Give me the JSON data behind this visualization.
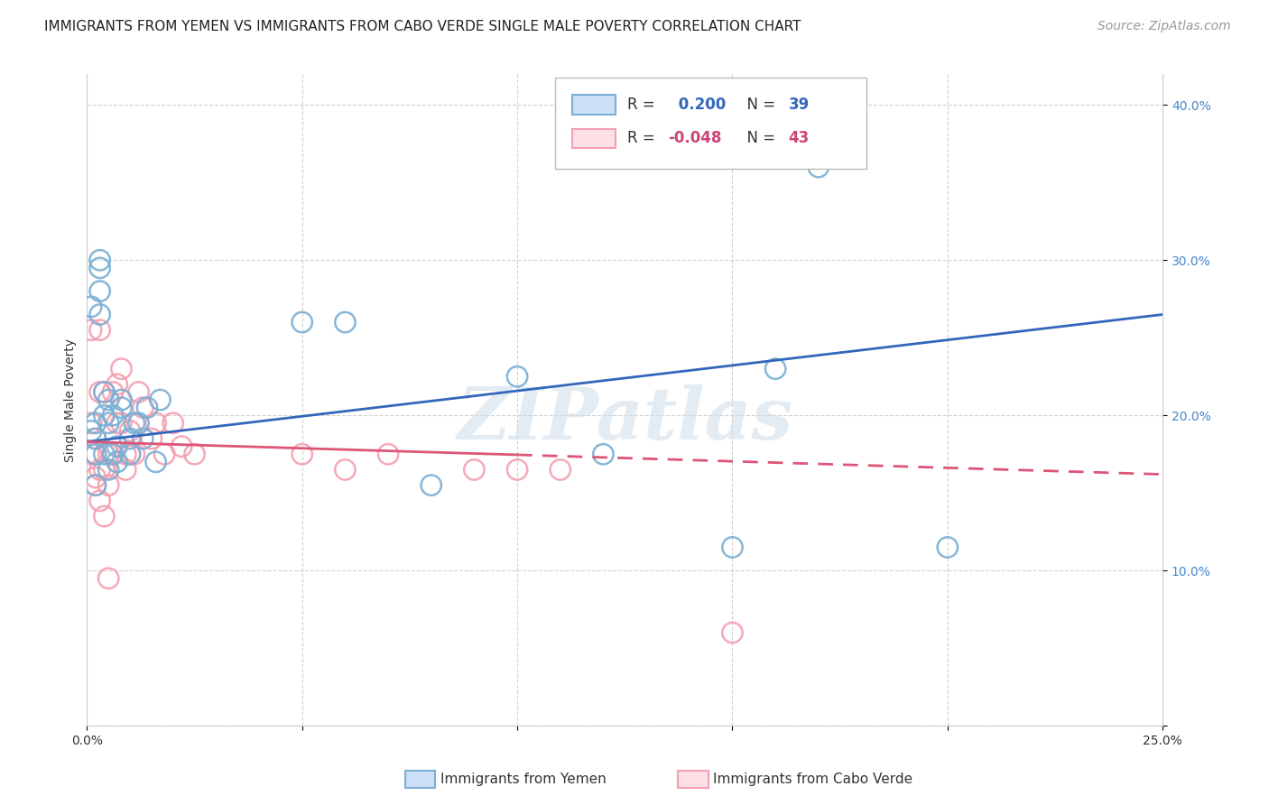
{
  "title": "IMMIGRANTS FROM YEMEN VS IMMIGRANTS FROM CABO VERDE SINGLE MALE POVERTY CORRELATION CHART",
  "source": "Source: ZipAtlas.com",
  "ylabel": "Single Male Poverty",
  "xlim": [
    0.0,
    0.25
  ],
  "ylim": [
    0.0,
    0.42
  ],
  "grid_color": "#cccccc",
  "background_color": "#ffffff",
  "yemen_color": "#7bafd4",
  "cabo_verde_color": "#f4a0b0",
  "yemen_line_color": "#3366bb",
  "cabo_line_color": "#dd5577",
  "yemen_R": 0.2,
  "yemen_N": 39,
  "cabo_verde_R": -0.048,
  "cabo_verde_N": 43,
  "watermark": "ZIPatlas",
  "yemen_scatter_x": [
    0.001,
    0.001,
    0.002,
    0.002,
    0.002,
    0.002,
    0.003,
    0.003,
    0.003,
    0.003,
    0.004,
    0.004,
    0.004,
    0.005,
    0.005,
    0.005,
    0.006,
    0.006,
    0.007,
    0.007,
    0.008,
    0.008,
    0.01,
    0.01,
    0.011,
    0.012,
    0.013,
    0.014,
    0.016,
    0.017,
    0.05,
    0.06,
    0.08,
    0.1,
    0.12,
    0.15,
    0.16,
    0.17,
    0.2
  ],
  "yemen_scatter_y": [
    0.19,
    0.27,
    0.175,
    0.155,
    0.185,
    0.195,
    0.28,
    0.265,
    0.295,
    0.3,
    0.175,
    0.2,
    0.215,
    0.195,
    0.21,
    0.165,
    0.175,
    0.2,
    0.18,
    0.17,
    0.205,
    0.21,
    0.185,
    0.175,
    0.195,
    0.195,
    0.185,
    0.205,
    0.17,
    0.21,
    0.26,
    0.26,
    0.155,
    0.225,
    0.175,
    0.115,
    0.23,
    0.36,
    0.115
  ],
  "cabo_scatter_x": [
    0.001,
    0.001,
    0.001,
    0.002,
    0.002,
    0.002,
    0.002,
    0.003,
    0.003,
    0.003,
    0.003,
    0.004,
    0.004,
    0.004,
    0.005,
    0.005,
    0.005,
    0.006,
    0.006,
    0.007,
    0.007,
    0.008,
    0.008,
    0.009,
    0.009,
    0.01,
    0.01,
    0.011,
    0.012,
    0.013,
    0.015,
    0.016,
    0.018,
    0.02,
    0.022,
    0.025,
    0.05,
    0.06,
    0.07,
    0.09,
    0.1,
    0.11,
    0.15
  ],
  "cabo_scatter_y": [
    0.175,
    0.195,
    0.255,
    0.185,
    0.175,
    0.16,
    0.155,
    0.215,
    0.255,
    0.165,
    0.145,
    0.215,
    0.165,
    0.135,
    0.175,
    0.155,
    0.095,
    0.215,
    0.175,
    0.22,
    0.195,
    0.23,
    0.195,
    0.175,
    0.165,
    0.19,
    0.175,
    0.175,
    0.215,
    0.205,
    0.185,
    0.195,
    0.175,
    0.195,
    0.18,
    0.175,
    0.175,
    0.165,
    0.175,
    0.165,
    0.165,
    0.165,
    0.06
  ],
  "title_fontsize": 11,
  "axis_label_fontsize": 10,
  "tick_fontsize": 10,
  "legend_fontsize": 12,
  "source_fontsize": 10
}
